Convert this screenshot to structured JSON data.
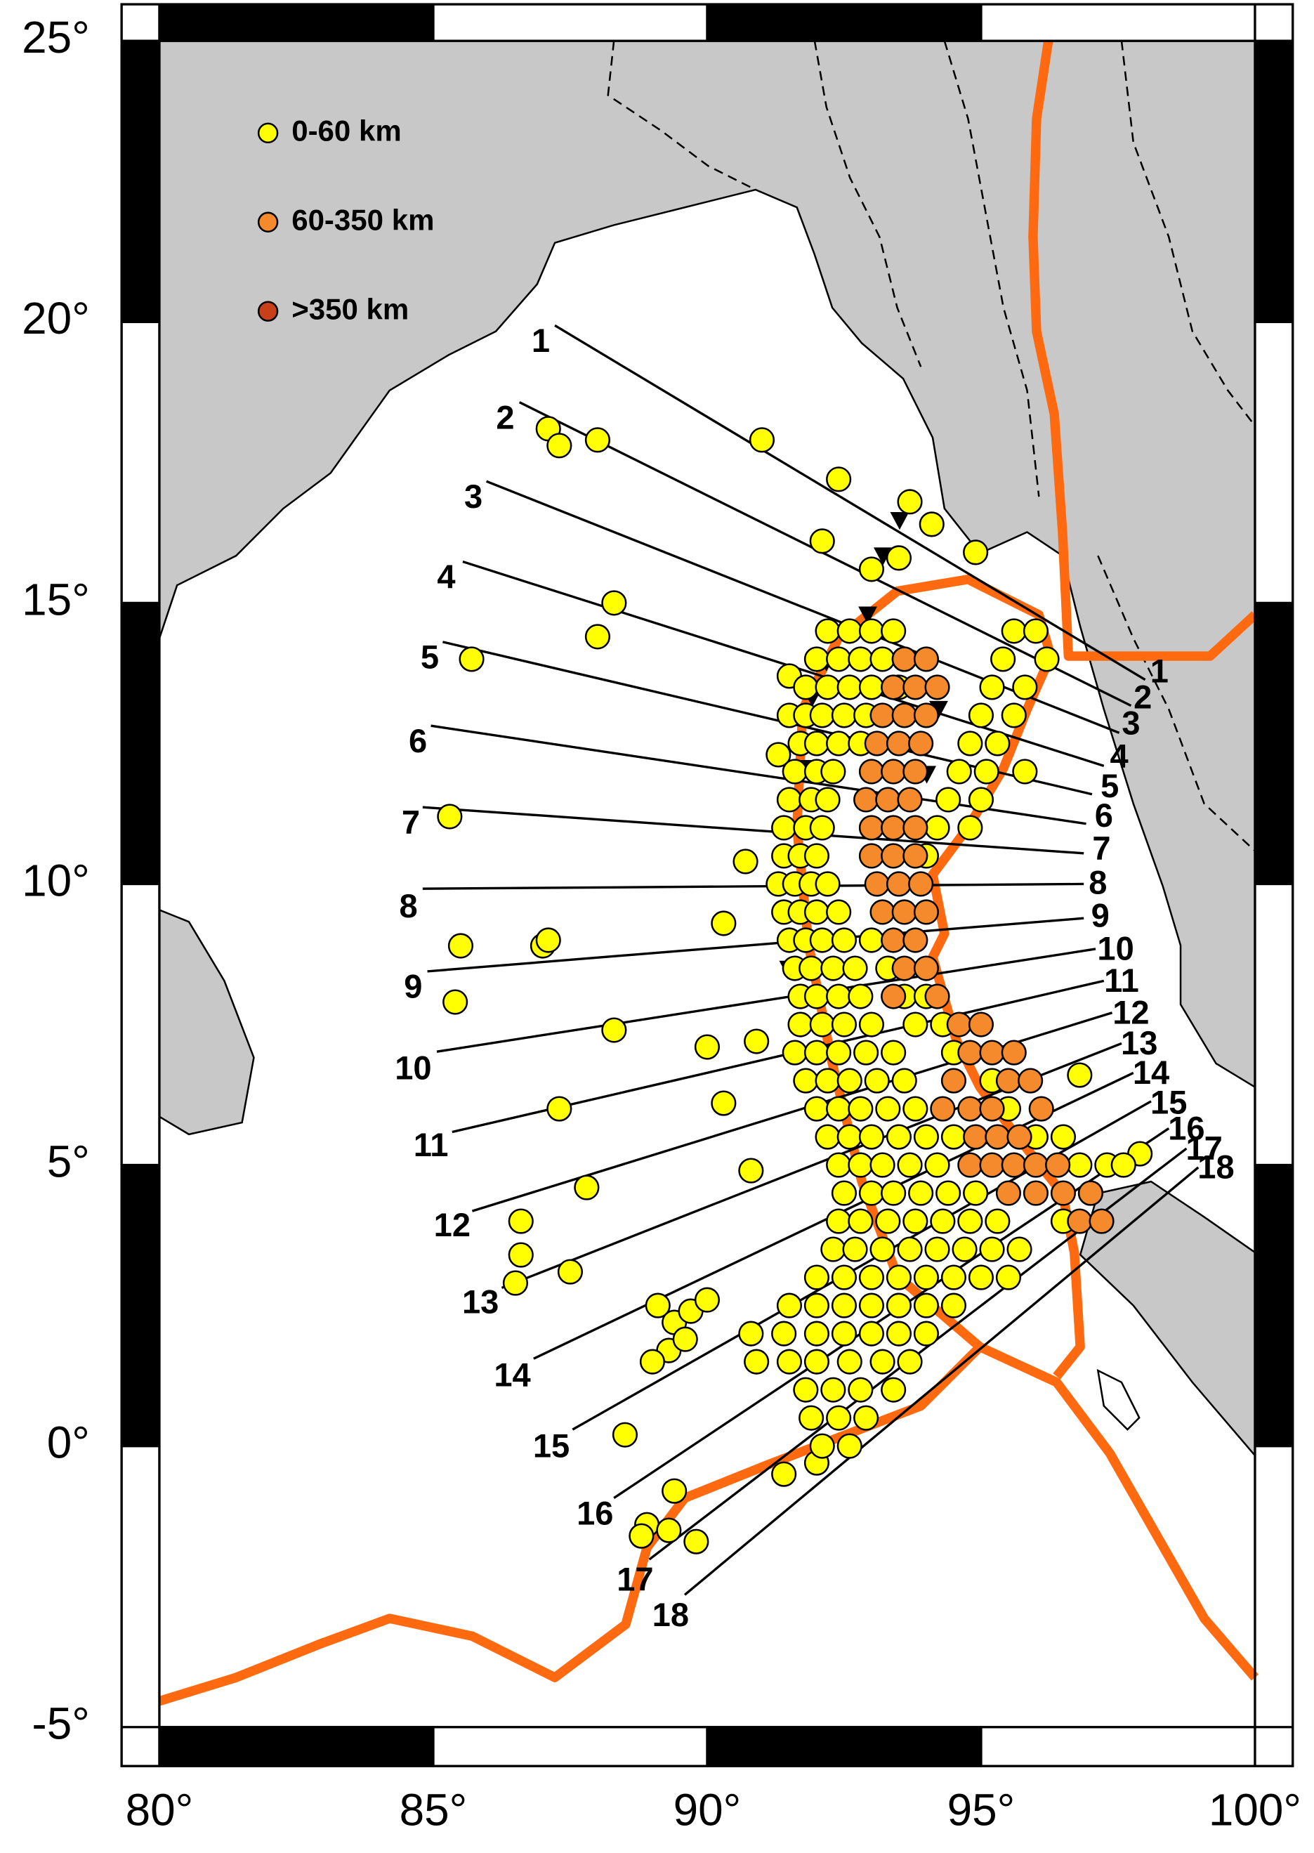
{
  "chart_data": {
    "type": "scatter",
    "legend": "upper left",
    "grid": false,
    "xlim": [
      80,
      100
    ],
    "ylim": [
      -5,
      25
    ],
    "xticks": [
      {
        "value": 80,
        "label": "80°"
      },
      {
        "value": 85,
        "label": "85°"
      },
      {
        "value": 90,
        "label": "90°"
      },
      {
        "value": 95,
        "label": "95°"
      },
      {
        "value": 100,
        "label": "100°"
      }
    ],
    "yticks": [
      {
        "value": 25,
        "label": "25°"
      },
      {
        "value": 20,
        "label": "20°"
      },
      {
        "value": 15,
        "label": "15°"
      },
      {
        "value": 10,
        "label": "10°"
      },
      {
        "value": 5,
        "label": "5°"
      },
      {
        "value": 0,
        "label": "0°"
      },
      {
        "value": -5,
        "label": "-5°"
      }
    ],
    "profiles": [
      "1",
      "2",
      "3",
      "4",
      "5",
      "6",
      "7",
      "8",
      "9",
      "10",
      "11",
      "12",
      "13",
      "14",
      "15",
      "16",
      "17",
      "18"
    ],
    "series": [
      {
        "name": "0-60 km",
        "color": "#ffff00",
        "x": [
          87.1,
          87.3,
          88.0,
          91.0,
          92.4,
          88.3,
          88.0,
          85.7,
          85.3,
          85.5,
          85.4,
          87.0,
          87.1,
          90.3,
          90.7,
          88.3,
          90.0,
          90.3,
          90.8,
          87.3,
          87.8,
          86.6,
          86.6,
          86.5,
          87.5,
          88.5,
          88.9,
          89.3,
          89.8,
          89.4,
          88.8,
          91.4,
          92.0,
          90.9,
          96.8,
          97.9,
          94.9,
          94.1,
          93.7,
          92.1,
          93.5,
          93.0,
          91.5,
          91.5,
          91.3,
          92.2,
          92.6,
          93.0,
          93.4,
          95.6,
          96.0,
          92.0,
          92.4,
          92.8,
          93.2,
          93.6,
          95.4,
          96.2,
          91.8,
          92.2,
          92.6,
          93.0,
          93.5,
          95.2,
          95.8,
          91.8,
          92.1,
          92.5,
          92.9,
          95.0,
          95.6,
          91.7,
          92.0,
          92.4,
          92.8,
          94.8,
          95.3,
          91.6,
          92.0,
          92.3,
          94.6,
          95.1,
          95.8,
          91.5,
          91.9,
          92.2,
          94.4,
          95.0,
          91.4,
          91.8,
          92.1,
          94.2,
          94.8,
          91.4,
          91.7,
          92.0,
          94.0,
          91.3,
          91.6,
          91.9,
          92.2,
          91.4,
          91.7,
          92.0,
          92.4,
          91.5,
          91.8,
          92.1,
          92.5,
          93.0,
          91.6,
          91.9,
          92.3,
          92.7,
          93.3,
          91.7,
          92.0,
          92.4,
          92.8,
          93.6,
          94.0,
          91.7,
          92.1,
          92.5,
          93.0,
          93.8,
          94.3,
          91.6,
          92.0,
          92.4,
          92.9,
          93.4,
          94.5,
          91.8,
          92.2,
          92.6,
          93.1,
          93.6,
          95.2,
          92.0,
          92.4,
          92.8,
          93.3,
          93.8,
          95.5,
          92.2,
          92.6,
          93.0,
          93.5,
          94.0,
          94.5,
          96.0,
          96.5,
          92.4,
          92.8,
          93.2,
          93.7,
          94.2,
          96.8,
          97.3,
          97.6,
          92.5,
          93.0,
          93.4,
          93.9,
          94.4,
          94.9,
          97.0,
          92.4,
          92.8,
          93.3,
          93.8,
          94.3,
          94.8,
          95.3,
          96.5,
          92.3,
          92.7,
          93.2,
          93.7,
          94.2,
          94.7,
          95.2,
          95.7,
          92.0,
          92.5,
          93.0,
          93.5,
          94.0,
          94.5,
          95.0,
          95.5,
          91.5,
          92.0,
          92.5,
          93.0,
          93.5,
          94.0,
          94.5,
          90.8,
          91.4,
          92.0,
          92.5,
          93.0,
          93.5,
          94.0,
          90.9,
          91.5,
          92.0,
          92.6,
          93.2,
          93.7,
          91.8,
          92.3,
          92.8,
          93.4,
          91.9,
          92.4,
          92.9,
          92.1,
          92.6,
          89.1,
          89.4,
          89.7,
          90.0,
          89.3,
          89.0,
          89.6
        ],
        "values": [
          18.1,
          17.8,
          17.9,
          17.9,
          17.2,
          15.0,
          14.4,
          14.0,
          11.2,
          8.9,
          7.9,
          8.9,
          9.0,
          9.3,
          10.4,
          7.4,
          7.1,
          6.1,
          4.9,
          6.0,
          4.6,
          4.0,
          3.4,
          2.9,
          3.1,
          0.2,
          -1.4,
          -1.5,
          -1.7,
          -0.8,
          -1.6,
          -0.5,
          -0.3,
          7.2,
          6.6,
          5.2,
          15.9,
          16.4,
          16.8,
          16.1,
          15.8,
          15.6,
          13.7,
          13.0,
          12.3,
          14.5,
          14.5,
          14.5,
          14.5,
          14.5,
          14.5,
          14,
          14,
          14,
          14,
          14,
          14,
          14,
          13.5,
          13.5,
          13.5,
          13.5,
          13.5,
          13.5,
          13.5,
          13,
          13,
          13,
          13,
          13,
          13,
          12.5,
          12.5,
          12.5,
          12.5,
          12.5,
          12.5,
          12,
          12,
          12,
          12,
          12,
          12,
          11.5,
          11.5,
          11.5,
          11.5,
          11.5,
          11,
          11,
          11,
          11,
          11,
          10.5,
          10.5,
          10.5,
          10.5,
          10,
          10,
          10,
          10,
          9.5,
          9.5,
          9.5,
          9.5,
          9,
          9,
          9,
          9,
          9,
          8.5,
          8.5,
          8.5,
          8.5,
          8.5,
          8,
          8,
          8,
          8,
          8,
          8,
          7.5,
          7.5,
          7.5,
          7.5,
          7.5,
          7.5,
          7,
          7,
          7,
          7,
          7,
          7,
          6.5,
          6.5,
          6.5,
          6.5,
          6.5,
          6.5,
          6,
          6,
          6,
          6,
          6,
          6,
          5.5,
          5.5,
          5.5,
          5.5,
          5.5,
          5.5,
          5.5,
          5.5,
          5,
          5,
          5,
          5,
          5,
          5,
          5,
          5,
          4.5,
          4.5,
          4.5,
          4.5,
          4.5,
          4.5,
          4.5,
          4,
          4,
          4,
          4,
          4,
          4,
          4,
          4,
          3.5,
          3.5,
          3.5,
          3.5,
          3.5,
          3.5,
          3.5,
          3.5,
          3,
          3,
          3,
          3,
          3,
          3,
          3,
          3,
          2.5,
          2.5,
          2.5,
          2.5,
          2.5,
          2.5,
          2.5,
          2,
          2,
          2,
          2,
          2,
          2,
          2,
          1.5,
          1.5,
          1.5,
          1.5,
          1.5,
          1.5,
          1,
          1,
          1,
          1,
          0.5,
          0.5,
          0.5,
          0,
          0,
          2.5,
          2.2,
          2.4,
          2.6,
          1.7,
          1.5,
          1.9
        ]
      },
      {
        "name": "60-350 km",
        "color": "#f58a2c",
        "x": [
          93.6,
          94.0,
          93.4,
          93.8,
          94.2,
          93.2,
          93.6,
          94.0,
          93.1,
          93.5,
          93.9,
          93.0,
          93.4,
          93.8,
          92.9,
          93.3,
          93.7,
          93.0,
          93.4,
          93.8,
          93.0,
          93.4,
          93.8,
          93.1,
          93.5,
          93.9,
          93.2,
          93.6,
          94.0,
          93.4,
          93.8,
          93.6,
          94.0,
          93.4,
          94.2,
          94.6,
          95.0,
          94.8,
          95.2,
          95.6,
          94.5,
          95.5,
          95.9,
          94.3,
          94.8,
          95.2,
          96.1,
          94.9,
          95.3,
          95.7,
          94.8,
          95.2,
          95.6,
          96.0,
          96.4,
          95.5,
          96.0,
          96.5,
          97.0,
          96.8,
          97.2
        ],
        "values": [
          14,
          14,
          13.5,
          13.5,
          13.5,
          13,
          13,
          13,
          12.5,
          12.5,
          12.5,
          12,
          12,
          12,
          11.5,
          11.5,
          11.5,
          11,
          11,
          11,
          10.5,
          10.5,
          10.5,
          10,
          10,
          10,
          9.5,
          9.5,
          9.5,
          9,
          9,
          8.5,
          8.5,
          8,
          8,
          7.5,
          7.5,
          7,
          7,
          7,
          6.5,
          6.5,
          6.5,
          6,
          6,
          6,
          6,
          5.5,
          5.5,
          5.5,
          5,
          5,
          5,
          5,
          5,
          4.5,
          4.5,
          4.5,
          4.5,
          4,
          4
        ]
      },
      {
        "name": ">350 km",
        "color": "#c8401a",
        "x": [],
        "values": []
      }
    ]
  }
}
